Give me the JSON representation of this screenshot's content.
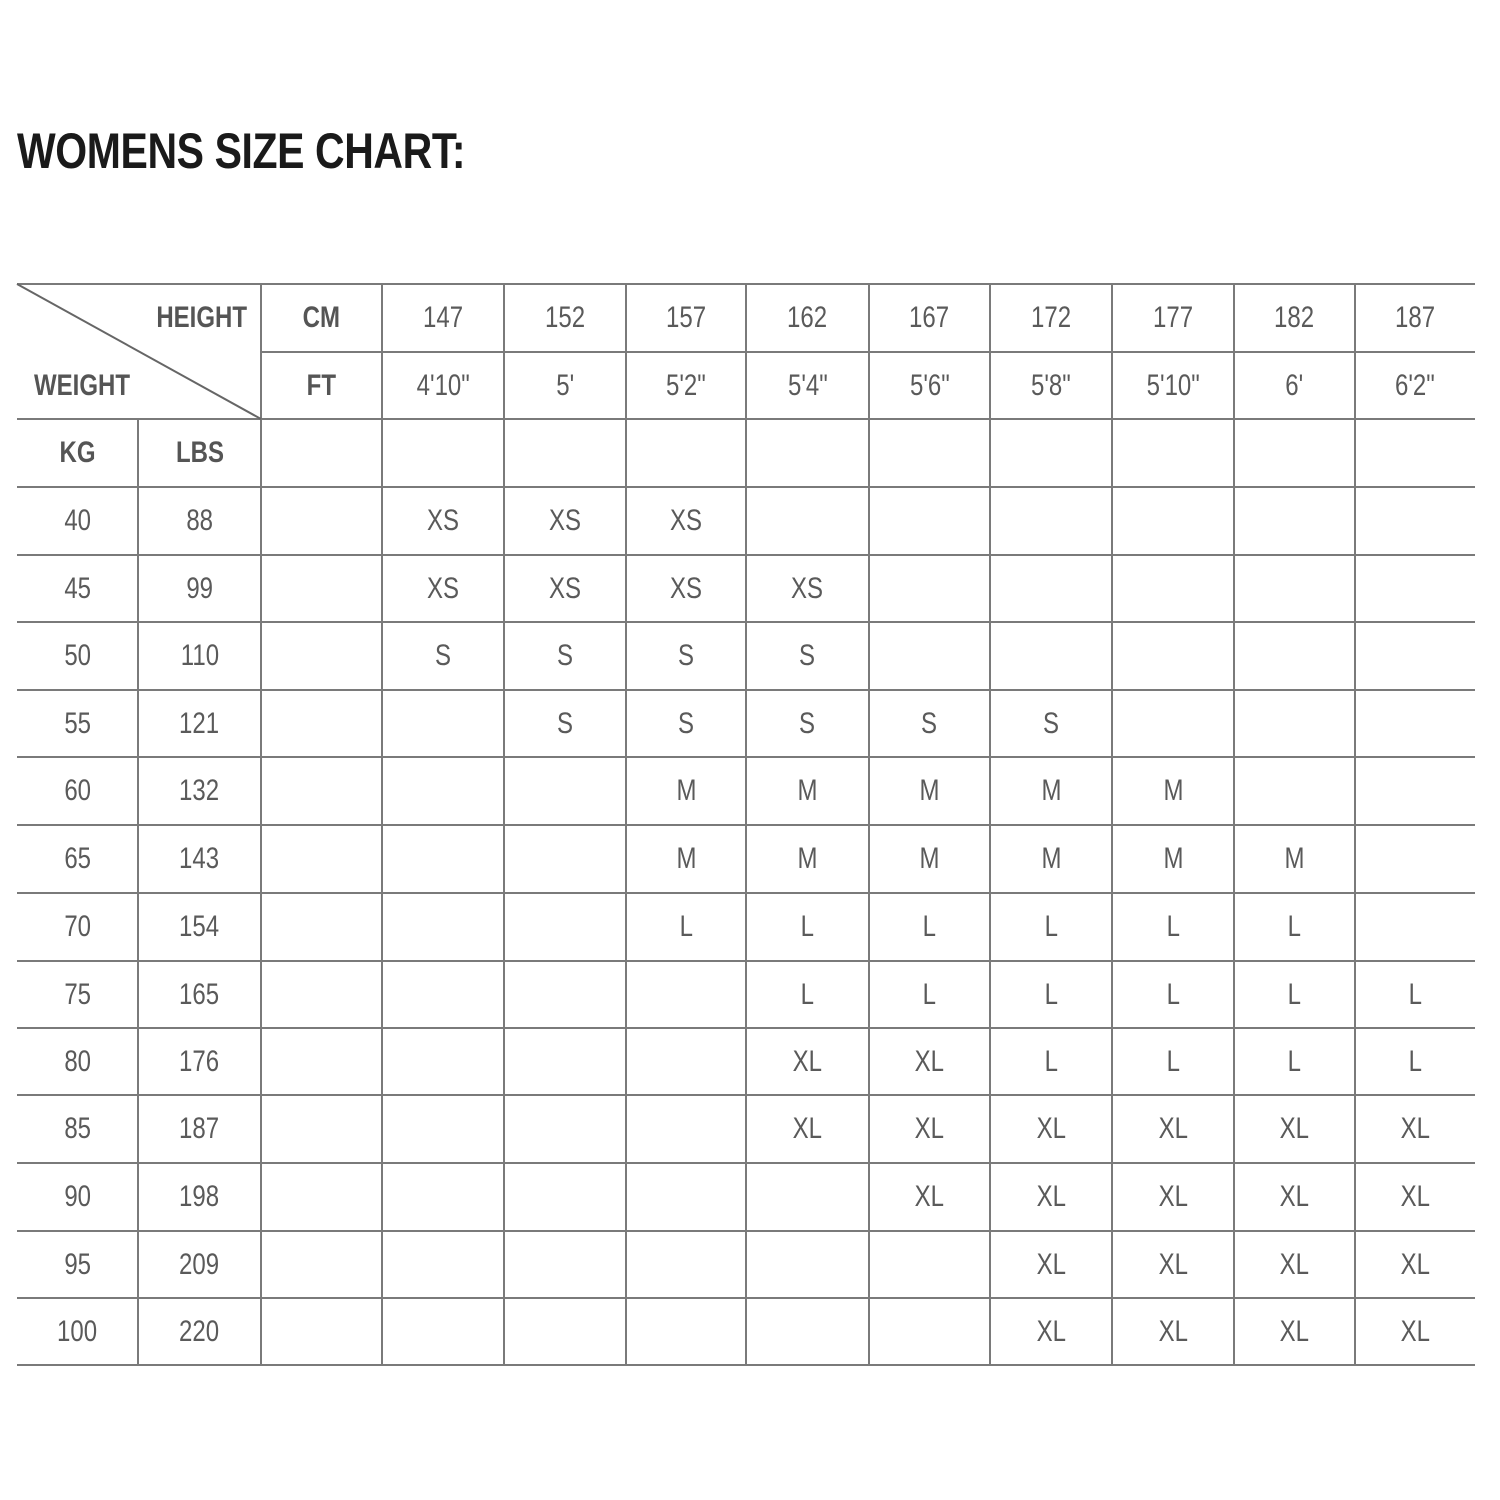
{
  "title": "WOMENS SIZE CHART:",
  "header": {
    "height_label": "HEIGHT",
    "weight_label": "WEIGHT",
    "cm_label": "CM",
    "ft_label": "FT",
    "kg_label": "KG",
    "lbs_label": "LBS",
    "cm": [
      "147",
      "152",
      "157",
      "162",
      "167",
      "172",
      "177",
      "182",
      "187"
    ],
    "ft": [
      "4'10\"",
      "5'",
      "5'2\"",
      "5'4\"",
      "5'6\"",
      "5'8\"",
      "5'10\"",
      "6'",
      "6'2\""
    ]
  },
  "rows": [
    {
      "kg": "40",
      "lbs": "88",
      "sizes": [
        "XS",
        "XS",
        "XS",
        "",
        "",
        "",
        "",
        "",
        ""
      ]
    },
    {
      "kg": "45",
      "lbs": "99",
      "sizes": [
        "XS",
        "XS",
        "XS",
        "XS",
        "",
        "",
        "",
        "",
        ""
      ]
    },
    {
      "kg": "50",
      "lbs": "110",
      "sizes": [
        "S",
        "S",
        "S",
        "S",
        "",
        "",
        "",
        "",
        ""
      ]
    },
    {
      "kg": "55",
      "lbs": "121",
      "sizes": [
        "",
        "S",
        "S",
        "S",
        "S",
        "S",
        "",
        "",
        ""
      ]
    },
    {
      "kg": "60",
      "lbs": "132",
      "sizes": [
        "",
        "",
        "M",
        "M",
        "M",
        "M",
        "M",
        "",
        ""
      ]
    },
    {
      "kg": "65",
      "lbs": "143",
      "sizes": [
        "",
        "",
        "M",
        "M",
        "M",
        "M",
        "M",
        "M",
        ""
      ]
    },
    {
      "kg": "70",
      "lbs": "154",
      "sizes": [
        "",
        "",
        "L",
        "L",
        "L",
        "L",
        "L",
        "L",
        ""
      ]
    },
    {
      "kg": "75",
      "lbs": "165",
      "sizes": [
        "",
        "",
        "",
        "L",
        "L",
        "L",
        "L",
        "L",
        "L"
      ]
    },
    {
      "kg": "80",
      "lbs": "176",
      "sizes": [
        "",
        "",
        "",
        "XL",
        "XL",
        "L",
        "L",
        "L",
        "L"
      ]
    },
    {
      "kg": "85",
      "lbs": "187",
      "sizes": [
        "",
        "",
        "",
        "XL",
        "XL",
        "XL",
        "XL",
        "XL",
        "XL"
      ]
    },
    {
      "kg": "90",
      "lbs": "198",
      "sizes": [
        "",
        "",
        "",
        "",
        "XL",
        "XL",
        "XL",
        "XL",
        "XL"
      ]
    },
    {
      "kg": "95",
      "lbs": "209",
      "sizes": [
        "",
        "",
        "",
        "",
        "",
        "XL",
        "XL",
        "XL",
        "XL"
      ]
    },
    {
      "kg": "100",
      "lbs": "220",
      "sizes": [
        "",
        "",
        "",
        "",
        "",
        "XL",
        "XL",
        "XL",
        "XL"
      ]
    }
  ]
}
